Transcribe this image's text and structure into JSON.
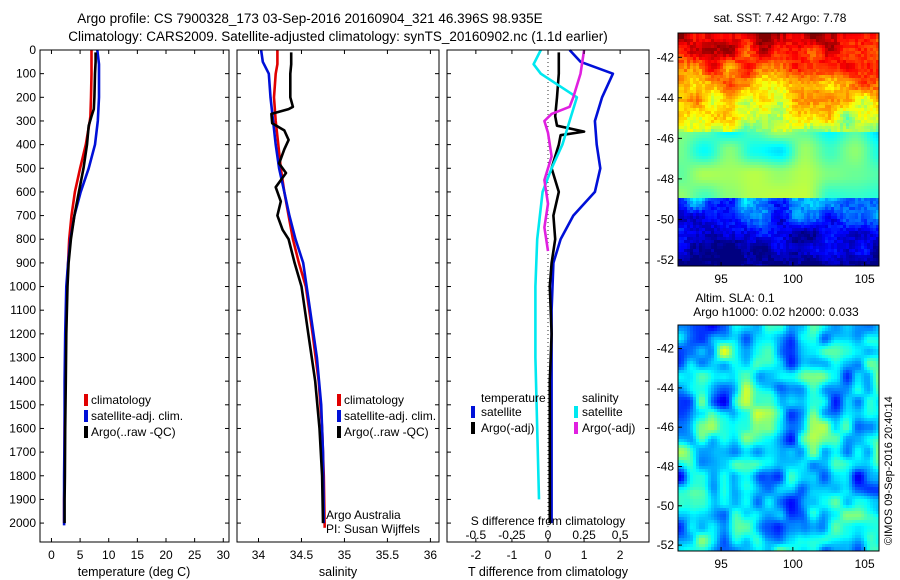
{
  "header": {
    "title_line1": "Argo profile: CS 7900328_173 03-Sep-2016 20160904_321 46.396S 98.935E",
    "title_line2": "Climatology: CARS2009. Satellite-adjusted climatology: synTS_20160902.nc (1.1d earlier)"
  },
  "colors": {
    "climatology": "#e00000",
    "satellite": "#0010d8",
    "argo": "#000000",
    "satellite_s": "#00e8f0",
    "argo_s": "#e020e0"
  },
  "chart_data": [
    {
      "type": "line",
      "id": "temperature",
      "xlabel": "temperature (deg C)",
      "ylabel": "",
      "xlim": [
        -2,
        31
      ],
      "ylim": [
        2080,
        0
      ],
      "xticks": [
        0,
        5,
        10,
        15,
        20,
        25,
        30
      ],
      "xtick_labels": [
        "0",
        "5",
        "10",
        "15",
        "20",
        "25",
        "30"
      ],
      "yticks": [
        0,
        100,
        200,
        300,
        400,
        500,
        600,
        700,
        800,
        900,
        1000,
        1100,
        1200,
        1300,
        1400,
        1500,
        1600,
        1700,
        1800,
        1900,
        2000
      ],
      "ytick_labels": [
        "0",
        "100",
        "200",
        "300",
        "400",
        "500",
        "600",
        "700",
        "800",
        "900",
        "1000",
        "1100",
        "1200",
        "1300",
        "1400",
        "1500",
        "1600",
        "1700",
        "1800",
        "1900",
        "2000"
      ],
      "legend": [
        "climatology",
        "satellite-adj. clim.",
        "Argo(..raw -QC)"
      ],
      "series": [
        {
          "name": "climatology",
          "color": "#e00000",
          "x": [
            7.0,
            7.0,
            7.0,
            6.9,
            6.8,
            6.7,
            6.0,
            5.0,
            4.1,
            3.5,
            3.1,
            2.9,
            2.7,
            2.5,
            2.4,
            2.3,
            2.3,
            2.2,
            2.2,
            2.2
          ],
          "y": [
            0,
            50,
            100,
            200,
            280,
            300,
            400,
            500,
            600,
            700,
            800,
            900,
            1000,
            1200,
            1400,
            1600,
            1800,
            1900,
            1950,
            2000
          ]
        },
        {
          "name": "satellite-adj. clim.",
          "color": "#0010d8",
          "x": [
            8.0,
            8.3,
            8.3,
            8.3,
            8.1,
            7.6,
            6.5,
            5.1,
            4.0,
            3.3,
            2.9,
            2.6,
            2.4,
            2.3,
            2.3,
            2.2,
            2.2
          ],
          "y": [
            0,
            60,
            100,
            200,
            300,
            400,
            500,
            600,
            700,
            800,
            900,
            1000,
            1200,
            1400,
            1600,
            1800,
            2010
          ]
        },
        {
          "name": "Argo(..raw -QC)",
          "color": "#000000",
          "x": [
            7.7,
            7.7,
            7.6,
            7.5,
            7.4,
            7.0,
            6.5,
            6.2,
            5.6,
            4.8,
            4.0,
            3.4,
            3.0,
            2.8,
            2.6,
            2.5,
            2.4,
            2.35,
            2.3,
            2.3
          ],
          "y": [
            10,
            50,
            100,
            200,
            250,
            280,
            320,
            400,
            500,
            600,
            700,
            800,
            900,
            1000,
            1200,
            1400,
            1600,
            1800,
            1900,
            2000
          ]
        }
      ]
    },
    {
      "type": "line",
      "id": "salinity",
      "xlabel": "salinity",
      "ylabel": "",
      "xlim": [
        33.75,
        36.1
      ],
      "ylim": [
        2080,
        0
      ],
      "xticks": [
        34,
        34.5,
        35,
        35.5,
        36
      ],
      "xtick_labels": [
        "34",
        "34.5",
        "35",
        "35.5",
        "36"
      ],
      "legend": [
        "climatology",
        "satellite-adj. clim.",
        "Argo(..raw -QC)"
      ],
      "annotation": [
        "Argo Australia",
        "PI: Susan Wijffels"
      ],
      "series": [
        {
          "name": "climatology",
          "color": "#e00000",
          "x": [
            34.22,
            34.22,
            34.2,
            34.18,
            34.2,
            34.23,
            34.26,
            34.3,
            34.35,
            34.4,
            34.47,
            34.55,
            34.63,
            34.7,
            34.74,
            34.76,
            34.77
          ],
          "y": [
            0,
            60,
            100,
            200,
            300,
            400,
            500,
            600,
            700,
            800,
            900,
            1000,
            1200,
            1400,
            1600,
            1800,
            2020
          ]
        },
        {
          "name": "satellite-adj. clim.",
          "color": "#0010d8",
          "x": [
            34.03,
            34.05,
            34.12,
            34.14,
            34.17,
            34.2,
            34.24,
            34.3,
            34.36,
            34.43,
            34.52,
            34.6,
            34.68,
            34.73,
            34.75,
            34.76
          ],
          "y": [
            0,
            50,
            100,
            200,
            300,
            400,
            500,
            600,
            700,
            800,
            900,
            1100,
            1300,
            1500,
            1700,
            2000
          ]
        },
        {
          "name": "Argo(..raw -QC)",
          "color": "#000000",
          "x": [
            34.38,
            34.38,
            34.37,
            34.37,
            34.4,
            34.35,
            34.15,
            34.16,
            34.3,
            34.35,
            34.3,
            34.24,
            34.32,
            34.2,
            34.26,
            34.22,
            34.28,
            34.35,
            34.42,
            34.5,
            34.58,
            34.66,
            34.71,
            34.74,
            34.75
          ],
          "y": [
            10,
            60,
            100,
            200,
            240,
            250,
            270,
            310,
            340,
            380,
            420,
            480,
            520,
            580,
            640,
            700,
            760,
            800,
            900,
            1000,
            1200,
            1400,
            1600,
            1800,
            2000
          ]
        }
      ]
    },
    {
      "type": "line",
      "id": "differences",
      "xlabel": "T difference from climatology",
      "x2label": "S difference from climatology",
      "ylabel": "",
      "xlim": [
        -2.8,
        2.8
      ],
      "ylim": [
        2080,
        0
      ],
      "xticks": [
        -2,
        -1,
        0,
        1,
        2
      ],
      "xtick_labels": [
        "-2",
        "-1",
        "0",
        "1",
        "2"
      ],
      "x2ticks": [
        -0.5,
        -0.25,
        0,
        0.25,
        0.5
      ],
      "x2tick_labels": [
        "-0.5",
        "-0.25",
        "0",
        "0.25",
        "0.5"
      ],
      "legend_groups": {
        "temperature": [
          "satellite",
          "Argo(-adj)"
        ],
        "salinity": [
          "satellite",
          "Argo(-adj)"
        ]
      },
      "legend_titles": [
        "temperature",
        "salinity"
      ],
      "series": [
        {
          "name": "temperature satellite",
          "color": "#0010d8",
          "x": [
            0.6,
            0.9,
            1.8,
            1.5,
            1.3,
            1.35,
            1.45,
            1.3,
            0.7,
            0.35,
            0.15,
            0.1,
            0.1,
            0.1,
            0.1
          ],
          "y": [
            0,
            50,
            100,
            200,
            300,
            400,
            500,
            600,
            700,
            800,
            900,
            1100,
            1400,
            1700,
            2000
          ]
        },
        {
          "name": "temperature Argo(-adj)",
          "color": "#000000",
          "x": [
            0.3,
            0.3,
            0.25,
            0.2,
            0.25,
            1.0,
            0.35,
            0.3,
            0.1,
            0.3,
            0.15,
            0.2,
            0.1,
            0.05,
            0.1,
            0.05,
            0.05,
            0.05,
            0.05
          ],
          "y": [
            10,
            100,
            200,
            280,
            320,
            345,
            360,
            400,
            500,
            600,
            700,
            800,
            900,
            1000,
            1200,
            1400,
            1600,
            1800,
            2000
          ]
        },
        {
          "name": "salinity satellite",
          "color": "#00e8f0",
          "x": [
            -0.2,
            -0.4,
            -0.2,
            0.8,
            0.6,
            0.4,
            0.1,
            -0.15,
            -0.3,
            -0.35,
            -0.35,
            -0.3,
            -0.25
          ],
          "y": [
            0,
            60,
            100,
            200,
            300,
            400,
            500,
            600,
            800,
            1000,
            1300,
            1600,
            1900
          ]
        },
        {
          "name": "salinity Argo(-adj)",
          "color": "#e020e0",
          "x": [
            1.0,
            0.9,
            0.7,
            0.6,
            0.1,
            -0.1,
            0.0,
            0.1,
            -0.1,
            0.0,
            -0.1,
            -0.05,
            0.0
          ],
          "y": [
            0,
            100,
            200,
            240,
            270,
            300,
            350,
            450,
            550,
            650,
            750,
            800,
            850
          ]
        }
      ]
    },
    {
      "type": "heatmap",
      "id": "sst_map",
      "title": "sat. SST: 7.42 Argo: 7.78",
      "xlim": [
        92,
        106
      ],
      "ylim": [
        -52.3,
        -40.8
      ],
      "xticks": [
        95,
        100,
        105
      ],
      "xtick_labels": [
        "95",
        "100",
        "105"
      ],
      "yticks": [
        -42,
        -44,
        -46,
        -48,
        -50,
        -52
      ],
      "ytick_labels": [
        "-42",
        "-44",
        "-46",
        "-48",
        "-50",
        "-52"
      ]
    },
    {
      "type": "heatmap",
      "id": "sla_map",
      "title_line1": "Altim. SLA: 0.1",
      "title_line2": "Argo h1000: 0.02 h2000: 0.033",
      "xlim": [
        92,
        106
      ],
      "ylim": [
        -52.3,
        -40.8
      ],
      "xticks": [
        95,
        100,
        105
      ],
      "xtick_labels": [
        "95",
        "100",
        "105"
      ],
      "yticks": [
        -42,
        -44,
        -46,
        -48,
        -50,
        -52
      ],
      "ytick_labels": [
        "-42",
        "-44",
        "-46",
        "-48",
        "-50",
        "-52"
      ]
    }
  ],
  "credit": "©IMOS 09-Sep-2016 20:40:14"
}
